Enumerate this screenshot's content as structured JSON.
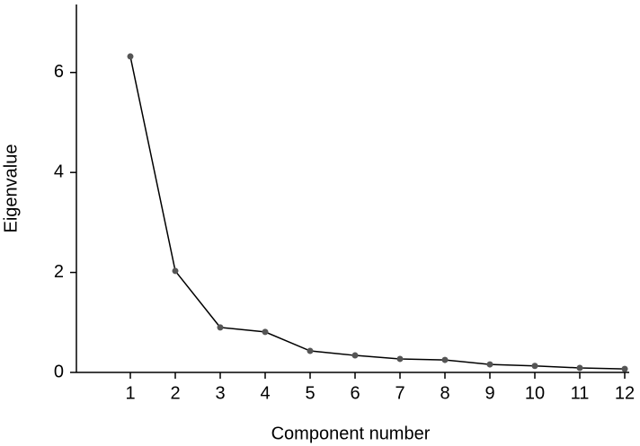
{
  "chart_data": {
    "type": "line",
    "x_label": "Component number",
    "y_label": "Eigenvalue",
    "x": [
      1,
      2,
      3,
      4,
      5,
      6,
      7,
      8,
      9,
      10,
      11,
      12
    ],
    "series": [
      {
        "color": "#000000",
        "marker_color": "#555555",
        "values": [
          6.32,
          2.03,
          0.9,
          0.81,
          0.43,
          0.34,
          0.27,
          0.25,
          0.16,
          0.13,
          0.09,
          0.07
        ]
      }
    ],
    "xlim": [
      -0.2,
      12.1
    ],
    "ylim": [
      0,
      7.36
    ],
    "xticks": [
      1,
      2,
      3,
      4,
      5,
      6,
      7,
      8,
      9,
      10,
      11,
      12
    ],
    "yticks": [
      0,
      2,
      4,
      6
    ]
  }
}
